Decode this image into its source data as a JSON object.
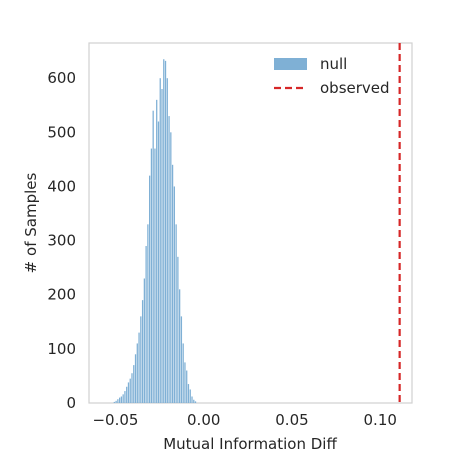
{
  "chart_data": {
    "type": "bar",
    "xlabel": "Mutual Information Diff",
    "ylabel": "# of Samples",
    "xlim": [
      -0.065,
      0.118
    ],
    "ylim": [
      0,
      665
    ],
    "xticks": [
      -0.05,
      0.0,
      0.05,
      0.1
    ],
    "xtick_labels": [
      "−0.05",
      "0.00",
      "0.05",
      "0.10"
    ],
    "yticks": [
      0,
      100,
      200,
      300,
      400,
      500,
      600
    ],
    "ytick_labels": [
      "0",
      "100",
      "200",
      "300",
      "400",
      "500",
      "600"
    ],
    "grid": false,
    "legend_position": "top-right",
    "series": [
      {
        "name": "null",
        "kind": "histogram",
        "color": "#7fb0d5",
        "bin_width": 0.001,
        "bin_start": -0.051,
        "values": [
          2,
          4,
          7,
          10,
          12,
          16,
          22,
          30,
          38,
          45,
          55,
          70,
          90,
          110,
          130,
          160,
          190,
          230,
          290,
          330,
          420,
          470,
          540,
          470,
          560,
          520,
          600,
          580,
          635,
          632,
          600,
          530,
          500,
          440,
          400,
          330,
          270,
          210,
          160,
          110,
          75,
          60,
          35,
          25,
          12,
          6,
          3
        ]
      },
      {
        "name": "observed",
        "kind": "vline",
        "color": "#d62728",
        "x": 0.111
      }
    ]
  }
}
